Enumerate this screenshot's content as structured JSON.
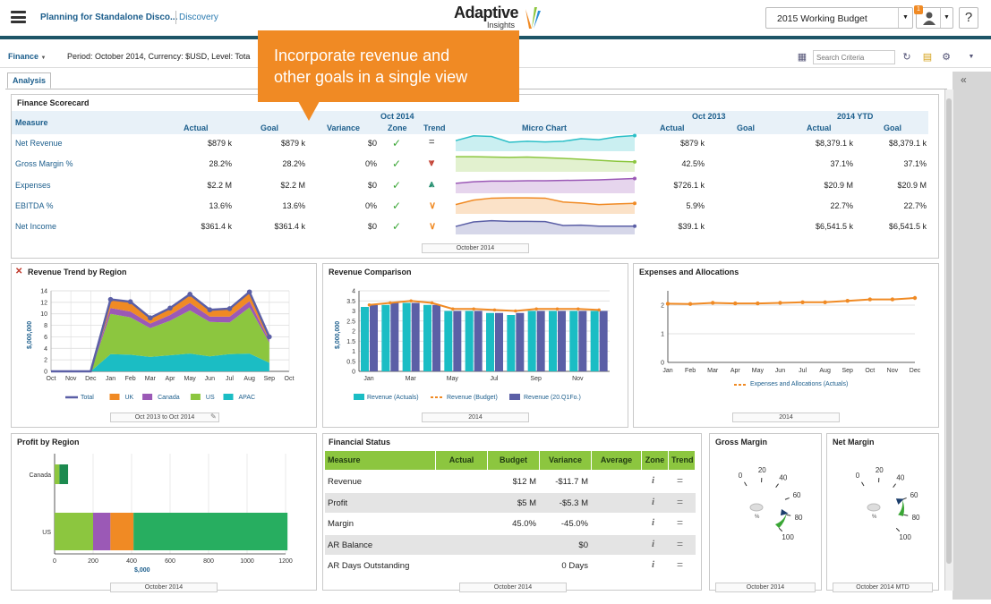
{
  "app": {
    "title": "Planning for Standalone Disco...",
    "module": "Discovery",
    "logo_main": "Adaptive",
    "logo_sub": "Insights",
    "version_selector": "2015 Working Budget",
    "notification_count": "1",
    "help_label": "?"
  },
  "filter": {
    "dimension": "Finance",
    "period_text": "Period: October 2014, Currency: $USD, Level: Tota",
    "search_placeholder": "Search Criteria"
  },
  "tabs": [
    {
      "label": "Analysis"
    }
  ],
  "callout": {
    "line1": "Incorporate revenue and",
    "line2": "other goals in a single view"
  },
  "scorecard": {
    "title": "Finance Scorecard",
    "group_oct2014": "Oct 2014",
    "group_oct2013": "Oct 2013",
    "group_ytd": "2014 YTD",
    "headers": {
      "measure": "Measure",
      "actual": "Actual",
      "goal": "Goal",
      "variance": "Variance",
      "zone": "Zone",
      "trend": "Trend",
      "micro": "Micro Chart",
      "actual13": "Actual",
      "goal13": "Goal",
      "ytd_actual": "Actual",
      "ytd_goal": "Goal"
    },
    "rows": [
      {
        "measure": "Net Revenue",
        "actual": "$879 k",
        "goal": "$879 k",
        "variance": "$0",
        "trend": "flat",
        "actual13": "$879 k",
        "goal13": "",
        "ytd_actual": "$8,379.1 k",
        "ytd_goal": "$8,379.1 k",
        "color": "#2bbfc7",
        "micro": [
          3,
          4.5,
          4.3,
          2.5,
          2.8,
          2.6,
          2.8,
          3.6,
          3.3,
          4.2,
          4.6
        ]
      },
      {
        "measure": "Gross Margin %",
        "actual": "28.2%",
        "goal": "28.2%",
        "variance": "0%",
        "trend": "down-double",
        "actual13": "42.5%",
        "goal13": "",
        "ytd_actual": "37.1%",
        "ytd_goal": "37.1%",
        "color": "#8cc63f",
        "micro": [
          4.4,
          4.4,
          4.3,
          4.2,
          4.3,
          4.1,
          3.9,
          3.6,
          3.3,
          3,
          2.8
        ]
      },
      {
        "measure": "Expenses",
        "actual": "$2.2 M",
        "goal": "$2.2 M",
        "variance": "$0",
        "trend": "up-double",
        "actual13": "$726.1 k",
        "goal13": "",
        "ytd_actual": "$20.9 M",
        "ytd_goal": "$20.9 M",
        "color": "#9b59b6",
        "micro": [
          2.8,
          3.3,
          3.5,
          3.5,
          3.6,
          3.6,
          3.7,
          3.8,
          3.9,
          4.1,
          4.3
        ]
      },
      {
        "measure": "EBITDA %",
        "actual": "13.6%",
        "goal": "13.6%",
        "variance": "0%",
        "trend": "down",
        "actual13": "5.9%",
        "goal13": "",
        "ytd_actual": "22.7%",
        "ytd_goal": "22.7%",
        "color": "#f08a24",
        "micro": [
          2.6,
          4,
          4.6,
          4.7,
          4.7,
          4.6,
          3.4,
          3.1,
          2.6,
          2.8,
          3
        ]
      },
      {
        "measure": "Net Income",
        "actual": "$361.4 k",
        "goal": "$361.4 k",
        "variance": "$0",
        "trend": "down",
        "actual13": "$39.1 k",
        "goal13": "",
        "ytd_actual": "$6,541.5 k",
        "ytd_goal": "$6,541.5 k",
        "color": "#5b5fa6",
        "micro": [
          2.2,
          3.6,
          4,
          3.8,
          3.8,
          3.7,
          2.5,
          2.6,
          2.3,
          2.3,
          2.3
        ]
      }
    ],
    "footer": "October 2014"
  },
  "revenue_trend": {
    "title": "Revenue Trend by Region",
    "footer": "Oct 2013 to Oct 2014"
  },
  "revenue_comparison": {
    "title": "Revenue Comparison",
    "footer": "2014"
  },
  "expenses_alloc": {
    "title": "Expenses and Allocations",
    "footer": "2014"
  },
  "profit_region": {
    "title": "Profit by Region",
    "footer": "October 2014"
  },
  "financial_status": {
    "title": "Financial Status",
    "headers": {
      "measure": "Measure",
      "actual": "Actual",
      "budget": "Budget",
      "variance": "Variance",
      "average": "Average",
      "zone": "Zone",
      "trend": "Trend"
    },
    "rows": [
      {
        "measure": "Revenue",
        "actual": "",
        "budget": "$12 M",
        "variance": "-$11.7 M",
        "average": ""
      },
      {
        "measure": "Profit",
        "actual": "",
        "budget": "$5 M",
        "variance": "-$5.3 M",
        "average": ""
      },
      {
        "measure": "Margin",
        "actual": "",
        "budget": "45.0%",
        "variance": "-45.0%",
        "average": ""
      },
      {
        "measure": "AR Balance",
        "actual": "",
        "budget": "",
        "variance": "$0",
        "average": ""
      },
      {
        "measure": "AR Days Outstanding",
        "actual": "",
        "budget": "",
        "variance": "0 Days",
        "average": ""
      }
    ],
    "footer": "October 2014"
  },
  "gross_margin": {
    "title": "Gross Margin",
    "footer": "October 2014",
    "ticks": [
      "0",
      "20",
      "40",
      "60",
      "80",
      "100"
    ],
    "unit": "%",
    "value": 78
  },
  "net_margin": {
    "title": "Net Margin",
    "footer": "October 2014 MTD",
    "ticks": [
      "0",
      "20",
      "40",
      "60",
      "80",
      "100"
    ],
    "unit": "%",
    "value": 60
  },
  "chart_data": [
    {
      "type": "area",
      "title": "Revenue Trend by Region",
      "ylabel": "$,000,000",
      "ylim": [
        0,
        14
      ],
      "yticks": [
        "0",
        "2",
        "4",
        "6",
        "8",
        "10",
        "12",
        "14"
      ],
      "categories": [
        "Oct",
        "Nov",
        "Dec",
        "Jan",
        "Feb",
        "Mar",
        "Apr",
        "May",
        "Jun",
        "Jul",
        "Aug",
        "Sep",
        "Oct"
      ],
      "series": [
        {
          "name": "APAC",
          "color": "#1bbdc4",
          "values": [
            0,
            0,
            0,
            3,
            2.9,
            2.5,
            2.8,
            3.1,
            2.6,
            3,
            3.1,
            1.5,
            null
          ]
        },
        {
          "name": "US",
          "color": "#8cc63f",
          "values": [
            0,
            0,
            0,
            7,
            6.5,
            5,
            6,
            7.5,
            6,
            5.5,
            8,
            3.5,
            null
          ]
        },
        {
          "name": "Canada",
          "color": "#9b59b6",
          "values": [
            0,
            0,
            0,
            1,
            1,
            0.8,
            1,
            1.3,
            0.9,
            1,
            1.1,
            0.4,
            null
          ]
        },
        {
          "name": "UK",
          "color": "#f08a24",
          "values": [
            0,
            0,
            0,
            1.5,
            1.7,
            1,
            1.2,
            1.5,
            1.2,
            1.4,
            1.6,
            0.6,
            null
          ]
        },
        {
          "name": "Total",
          "color": "#5b5fa6",
          "values": [
            0,
            0,
            0,
            12.5,
            12.1,
            9.3,
            11,
            13.4,
            10.7,
            10.9,
            13.8,
            6,
            null
          ]
        }
      ]
    },
    {
      "type": "bar",
      "title": "Revenue Comparison",
      "ylabel": "$,000,000",
      "ylim": [
        0,
        4
      ],
      "yticks": [
        "0",
        "0.5",
        "1",
        "1.5",
        "2",
        "2.5",
        "3",
        "3.5",
        "4"
      ],
      "categories": [
        "Jan",
        "Feb",
        "Mar",
        "Apr",
        "May",
        "Jun",
        "Jul",
        "Aug",
        "Sep",
        "Oct",
        "Nov",
        "Dec"
      ],
      "x_tick_labels": [
        "Jan",
        "",
        "Mar",
        "",
        "May",
        "",
        "Jul",
        "",
        "Sep",
        "",
        "Nov",
        ""
      ],
      "series": [
        {
          "name": "Revenue (Actuals)",
          "color": "#1bbdc4",
          "values": [
            3.2,
            3.3,
            3.4,
            3.3,
            3,
            3,
            2.9,
            2.8,
            3,
            3,
            3,
            3
          ]
        },
        {
          "name": "Revenue (Budget)",
          "color": "#f08a24",
          "values": [
            3.3,
            3.4,
            3.5,
            3.4,
            3.1,
            3.1,
            3.05,
            3,
            3.1,
            3.1,
            3.1,
            3.05
          ]
        },
        {
          "name": "Revenue (20.Q1Fo.)",
          "color": "#5b5fa6",
          "values": [
            3.3,
            3.4,
            3.4,
            3.3,
            3,
            3,
            2.9,
            2.9,
            3,
            3,
            3,
            3
          ]
        }
      ]
    },
    {
      "type": "line",
      "title": "Expenses and Allocations",
      "ylim": [
        0,
        2.5
      ],
      "yticks": [
        "0",
        "1",
        "2"
      ],
      "categories": [
        "Jan",
        "Feb",
        "Mar",
        "Apr",
        "May",
        "Jun",
        "Jul",
        "Aug",
        "Sep",
        "Oct",
        "Nov",
        "Dec"
      ],
      "series": [
        {
          "name": "Expenses and Allocations (Actuals)",
          "color": "#f08a24",
          "values": [
            2.05,
            2.04,
            2.08,
            2.06,
            2.06,
            2.08,
            2.1,
            2.1,
            2.15,
            2.2,
            2.2,
            2.25
          ]
        }
      ]
    },
    {
      "type": "bar",
      "orientation": "horizontal",
      "title": "Profit by Region",
      "xlabel": "$,000",
      "xlim": [
        0,
        1200
      ],
      "xticks": [
        "0",
        "200",
        "400",
        "600",
        "800",
        "1000",
        "1200"
      ],
      "categories": [
        "Canada",
        "US"
      ],
      "series": [
        {
          "color": "#8cc63f",
          "values": [
            25,
            200
          ]
        },
        {
          "color": "#1c8a4f",
          "values": [
            45,
            0
          ]
        },
        {
          "color": "#9b59b6",
          "values": [
            0,
            90
          ]
        },
        {
          "color": "#f08a24",
          "values": [
            0,
            120
          ]
        },
        {
          "color": "#27ae60",
          "values": [
            0,
            800
          ]
        }
      ]
    }
  ]
}
